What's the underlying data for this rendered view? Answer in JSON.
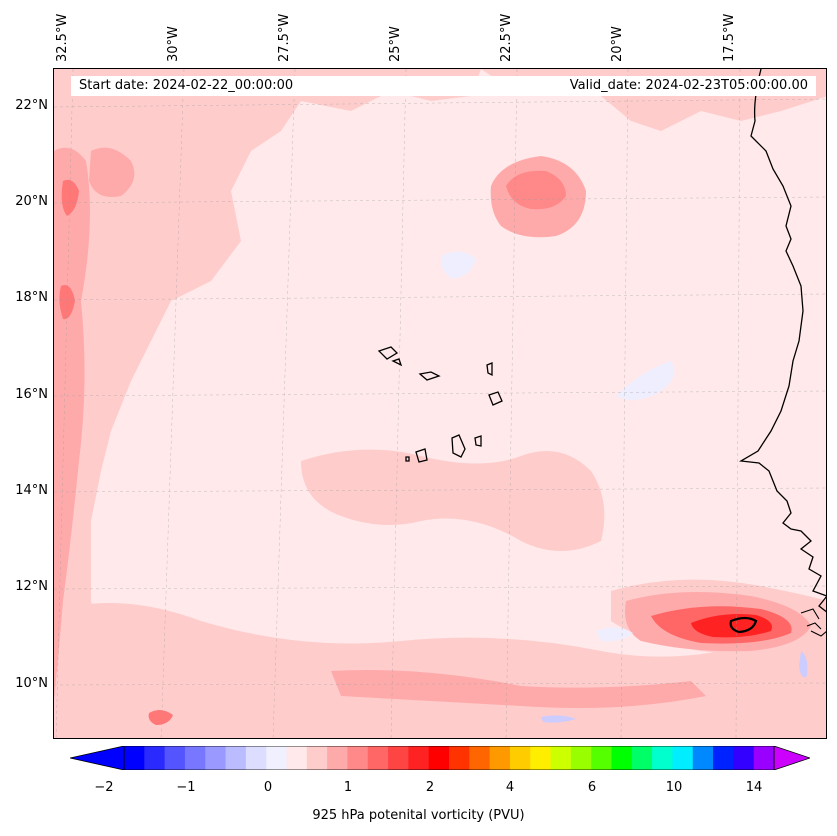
{
  "map": {
    "start_date": "Start date: 2024-02-22_00:00:00",
    "valid_date": "Valid_date: 2024-02-23T05:00:00.00",
    "longitude_labels": [
      "32.5°W",
      "30°W",
      "27.5°W",
      "25°W",
      "22.5°W",
      "20°W",
      "17.5°W"
    ],
    "latitude_labels": [
      "22°N",
      "20°N",
      "18°N",
      "16°N",
      "14°N",
      "12°N",
      "10°N"
    ]
  },
  "colorbar": {
    "label": "925 hPa potenital vorticity (PVU)",
    "tick_labels": [
      "−2",
      "−1",
      "0",
      "1",
      "2",
      "4",
      "6",
      "10",
      "14"
    ],
    "min_color": "#0000ff",
    "max_color": "#cc00ff",
    "colors": [
      "#0000ff",
      "#2a2aff",
      "#5555ff",
      "#7777ff",
      "#9999ff",
      "#bbbbff",
      "#ddddff",
      "#f0f0ff",
      "#ffe9ea",
      "#ffcccc",
      "#ffaaaa",
      "#ff8888",
      "#ff6666",
      "#ff4444",
      "#ff2222",
      "#ff0000",
      "#ff3300",
      "#ff6600",
      "#ff9900",
      "#ffcc00",
      "#ffee00",
      "#ccff00",
      "#99ff00",
      "#55ff00",
      "#00ff00",
      "#00ff66",
      "#00ffcc",
      "#00eeff",
      "#0088ff",
      "#0022ff",
      "#3300ff",
      "#9900ff"
    ]
  },
  "palette": {
    "background": "#ffe9ea",
    "light": "#ffcccc",
    "medium": "#ffaaaa",
    "strong": "#ff7777",
    "core": "#ff2222",
    "bluish": "#eeeeff"
  }
}
